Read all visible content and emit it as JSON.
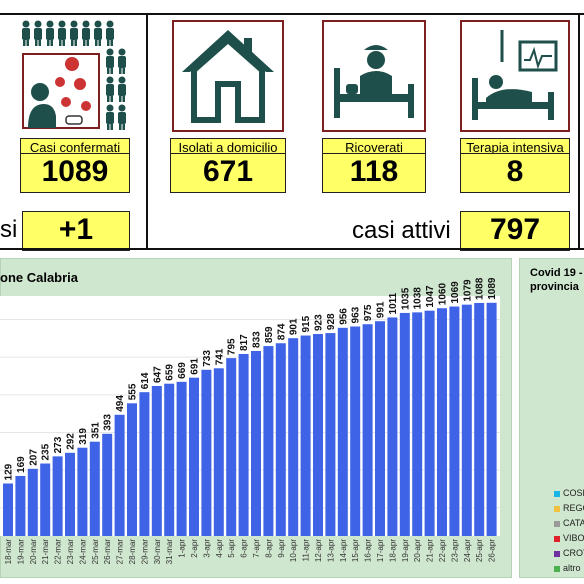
{
  "stats": [
    {
      "label": "Casi confermati",
      "value": "1089"
    },
    {
      "label": "Isolati a domicilio",
      "value": "671"
    },
    {
      "label": "Ricoverati",
      "value": "118"
    },
    {
      "label": "Terapia intensiva",
      "value": "8"
    }
  ],
  "daily_label_fragment": "si",
  "daily_value": "+1",
  "active_label": "casi attivi",
  "active_value": "797",
  "chart_title": "one Calabria",
  "side_title_line1": "Covid 19 -",
  "side_title_line2": "provincia",
  "legend": [
    {
      "label": "COSE",
      "color": "#19b4e6"
    },
    {
      "label": "REGG",
      "color": "#f2c040"
    },
    {
      "label": "CATA",
      "color": "#999999"
    },
    {
      "label": "VIBO",
      "color": "#e0202a"
    },
    {
      "label": "CROT",
      "color": "#7030a0"
    },
    {
      "label": "altro",
      "color": "#4caf50"
    }
  ],
  "chart_data": {
    "type": "bar",
    "bar_color": "#3f63e6",
    "categories": [
      "18-mar",
      "19-mar",
      "20-mar",
      "21-mar",
      "22-mar",
      "23-mar",
      "24-mar",
      "25-mar",
      "26-mar",
      "27-mar",
      "28-mar",
      "29-mar",
      "30-mar",
      "31-mar",
      "1-apr",
      "2-apr",
      "3-apr",
      "4-apr",
      "5-apr",
      "6-apr",
      "7-apr",
      "8-apr",
      "9-apr",
      "10-apr",
      "11-apr",
      "12-apr",
      "13-apr",
      "14-apr",
      "15-apr",
      "16-apr",
      "17-apr",
      "18-apr",
      "19-apr",
      "20-apr",
      "21-apr",
      "22-apr",
      "23-apr",
      "24-apr",
      "25-apr",
      "26-apr"
    ],
    "values": [
      129,
      169,
      207,
      235,
      273,
      292,
      319,
      351,
      393,
      494,
      555,
      614,
      647,
      659,
      669,
      691,
      733,
      741,
      795,
      817,
      833,
      859,
      874,
      901,
      915,
      923,
      928,
      956,
      963,
      975,
      991,
      1011,
      1035,
      1038,
      1047,
      1060,
      1069,
      1079,
      1088,
      1089
    ],
    "ylim": [
      0,
      1100
    ]
  }
}
